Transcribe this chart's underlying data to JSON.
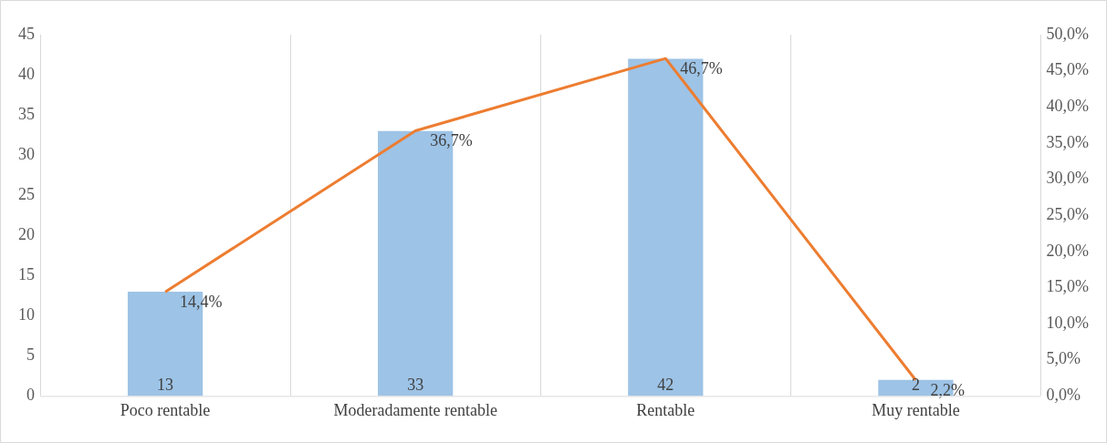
{
  "chart_data": {
    "type": "bar",
    "categories": [
      "Poco rentable",
      "Moderadamente rentable",
      "Rentable",
      "Muy rentable"
    ],
    "series": [
      {
        "color": "#9dc3e6",
        "values": [
          13,
          33,
          42,
          2
        ],
        "value_labels": [
          "13",
          "33",
          "42",
          "2"
        ]
      },
      {
        "type": "line",
        "axis": "y2",
        "color": "#ed7d31",
        "values": [
          14.4,
          36.7,
          46.7,
          2.2
        ],
        "value_labels": [
          "14,4%",
          "36,7%",
          "46,7%",
          "2,2%"
        ]
      }
    ],
    "ylim": [
      0,
      45
    ],
    "yticks": [
      0,
      5,
      10,
      15,
      20,
      25,
      30,
      35,
      40,
      45
    ],
    "y2lim": [
      0,
      50
    ],
    "y2ticks": [
      {
        "value": 0,
        "label": "0,0%"
      },
      {
        "value": 5,
        "label": "5,0%"
      },
      {
        "value": 10,
        "label": "10,0%"
      },
      {
        "value": 15,
        "label": "15,0%"
      },
      {
        "value": 20,
        "label": "20,0%"
      },
      {
        "value": 25,
        "label": "25,0%"
      },
      {
        "value": 30,
        "label": "30,0%"
      },
      {
        "value": 35,
        "label": "35,0%"
      },
      {
        "value": 40,
        "label": "40,0%"
      },
      {
        "value": 45,
        "label": "45,0%"
      },
      {
        "value": 50,
        "label": "50,0%"
      }
    ],
    "grid": "x",
    "legend": false,
    "marker": "none",
    "line_style": "solid"
  }
}
